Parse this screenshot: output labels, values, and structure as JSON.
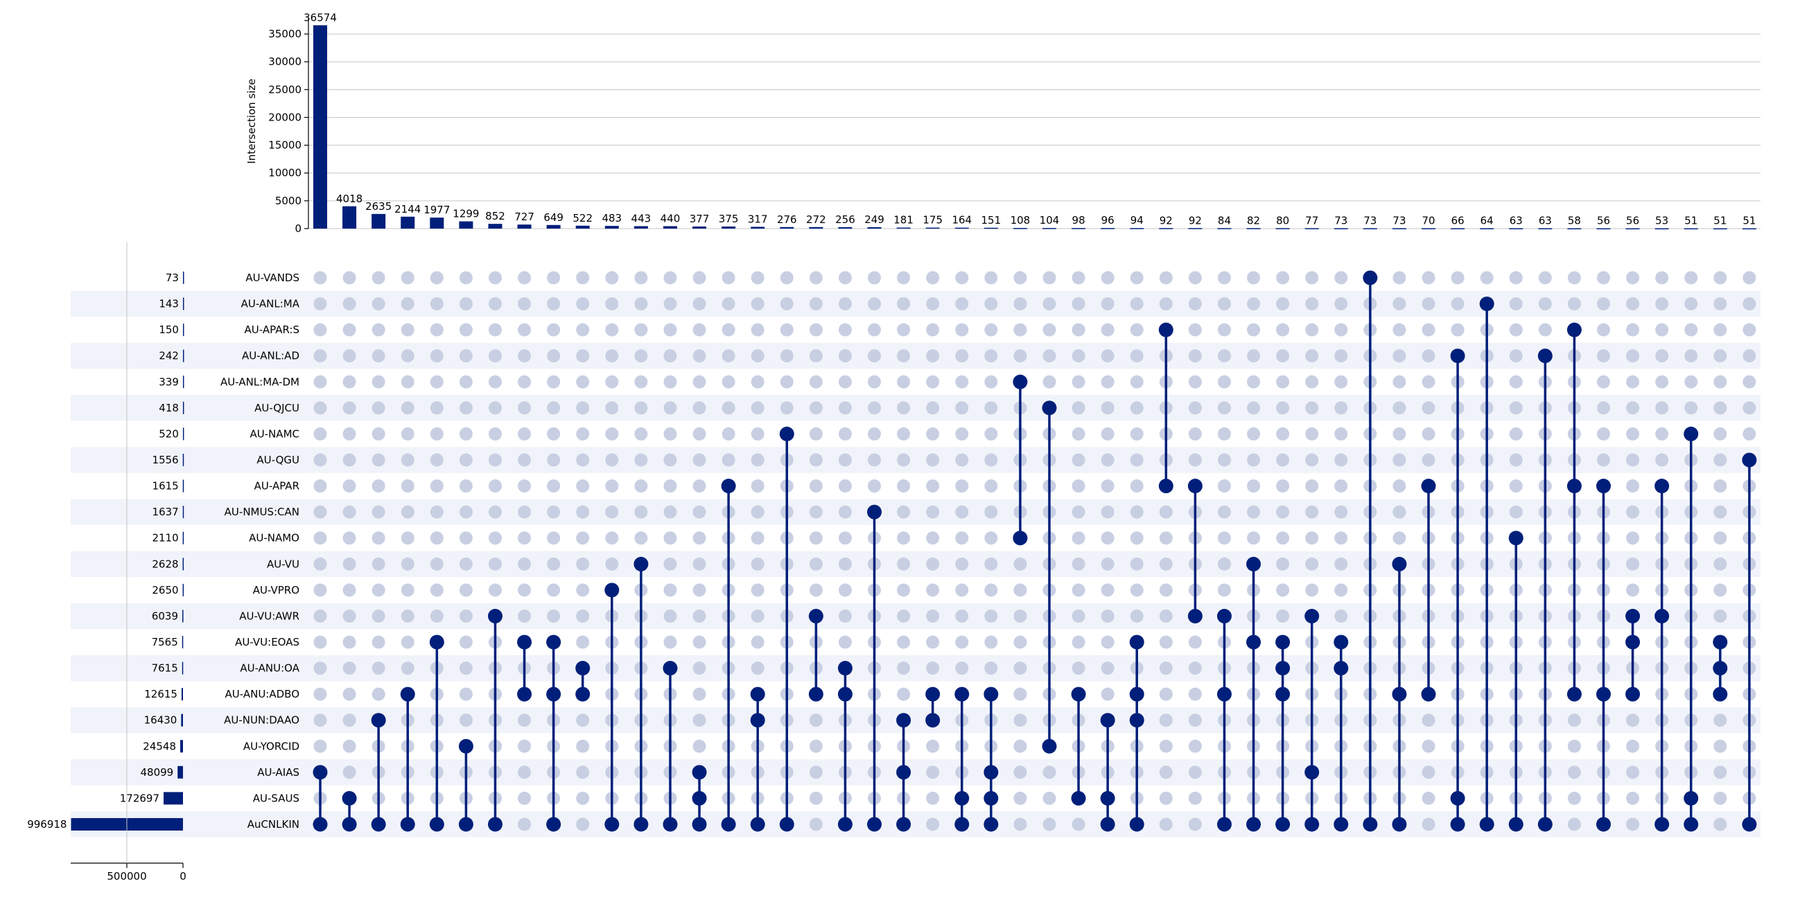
{
  "chart_data": {
    "type": "upset",
    "colors": {
      "accent": "#001f7a",
      "inactive_dot": "#c8cfe2",
      "row_stripe": "#f0f3f9",
      "grid": "#c6c6c6",
      "axis": "#000000"
    },
    "intersections": {
      "ylabel": "Intersection size",
      "yticks": [
        0,
        5000,
        10000,
        15000,
        20000,
        25000,
        30000,
        35000
      ],
      "ylim": [
        0,
        38000
      ],
      "grid": true,
      "values": [
        36574,
        4018,
        2635,
        2144,
        1977,
        1299,
        852,
        727,
        649,
        522,
        483,
        443,
        440,
        377,
        375,
        317,
        276,
        272,
        256,
        249,
        181,
        175,
        164,
        151,
        108,
        104,
        98,
        96,
        94,
        92,
        92,
        84,
        82,
        80,
        77,
        73,
        73,
        73,
        70,
        66,
        64,
        63,
        63,
        58,
        56,
        56,
        53,
        51,
        51,
        51
      ],
      "labels": [
        "36574",
        "4018",
        "2635",
        "2144",
        "1977",
        "1299",
        "852",
        "727",
        "649",
        "522",
        "483",
        "443",
        "440",
        "377",
        "375",
        "317",
        "276",
        "272",
        "256",
        "249",
        "181",
        "175",
        "164",
        "151",
        "108",
        "104",
        "98",
        "96",
        "94",
        "92",
        "92",
        "84",
        "82",
        "80",
        "77",
        "73",
        "73",
        "73",
        "70",
        "66",
        "64",
        "63",
        "63",
        "58",
        "56",
        "56",
        "53",
        "51",
        "51",
        "51"
      ]
    },
    "sets": {
      "names": [
        "AU-VANDS",
        "AU-ANL:MA",
        "AU-APAR:S",
        "AU-ANL:AD",
        "AU-ANL:MA-DM",
        "AU-QJCU",
        "AU-NAMC",
        "AU-QGU",
        "AU-APAR",
        "AU-NMUS:CAN",
        "AU-NAMO",
        "AU-VU",
        "AU-VPRO",
        "AU-VU:AWR",
        "AU-VU:EOAS",
        "AU-ANU:OA",
        "AU-ANU:ADBO",
        "AU-NUN:DAAO",
        "AU-YORCID",
        "AU-AIAS",
        "AU-SAUS",
        "AuCNLKIN"
      ],
      "sizes": [
        73,
        143,
        150,
        242,
        339,
        418,
        520,
        1556,
        1615,
        1637,
        2110,
        2628,
        2650,
        6039,
        7565,
        7615,
        12615,
        16430,
        24548,
        48099,
        172697,
        996918
      ],
      "size_labels": [
        "73",
        "143",
        "150",
        "242",
        "339",
        "418",
        "520",
        "1556",
        "1615",
        "1637",
        "2110",
        "2628",
        "2650",
        "6039",
        "7565",
        "7615",
        "12615",
        "16430",
        "24548",
        "48099",
        "172697",
        "996918"
      ],
      "xticks": [
        500000,
        0
      ],
      "xtick_labels": [
        "500000",
        "0"
      ],
      "xlim": [
        0,
        1000000
      ]
    },
    "membership": [
      [
        19,
        21
      ],
      [
        20,
        21
      ],
      [
        17,
        21
      ],
      [
        16,
        21
      ],
      [
        14,
        21
      ],
      [
        18,
        21
      ],
      [
        13,
        21
      ],
      [
        14,
        16
      ],
      [
        14,
        16,
        21
      ],
      [
        15,
        16
      ],
      [
        12,
        21
      ],
      [
        11,
        21
      ],
      [
        15,
        21
      ],
      [
        19,
        20,
        21
      ],
      [
        8,
        21
      ],
      [
        16,
        17,
        21
      ],
      [
        6,
        21
      ],
      [
        13,
        16
      ],
      [
        15,
        16,
        21
      ],
      [
        9,
        21
      ],
      [
        17,
        19,
        21
      ],
      [
        16,
        17
      ],
      [
        16,
        20,
        21
      ],
      [
        16,
        19,
        20,
        21
      ],
      [
        4,
        10
      ],
      [
        5,
        18
      ],
      [
        16,
        20
      ],
      [
        17,
        20,
        21
      ],
      [
        14,
        16,
        17,
        21
      ],
      [
        2,
        8
      ],
      [
        8,
        13
      ],
      [
        13,
        16,
        21
      ],
      [
        11,
        14,
        21
      ],
      [
        14,
        15,
        16,
        21
      ],
      [
        13,
        19,
        21
      ],
      [
        14,
        15,
        21
      ],
      [
        0,
        21
      ],
      [
        11,
        16,
        21
      ],
      [
        8,
        16
      ],
      [
        3,
        20,
        21
      ],
      [
        1,
        21
      ],
      [
        10,
        21
      ],
      [
        3,
        21
      ],
      [
        2,
        8,
        16
      ],
      [
        8,
        16,
        21
      ],
      [
        13,
        14,
        16
      ],
      [
        8,
        13,
        21
      ],
      [
        6,
        20,
        21
      ],
      [
        14,
        15,
        16
      ],
      [
        7,
        21
      ]
    ]
  }
}
